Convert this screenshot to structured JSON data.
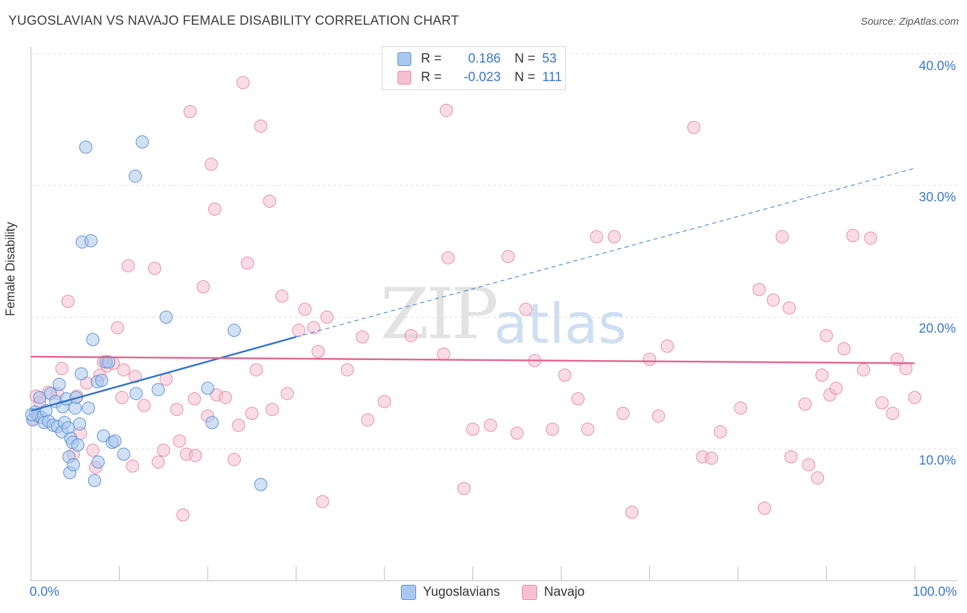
{
  "title": "YUGOSLAVIAN VS NAVAJO FEMALE DISABILITY CORRELATION CHART",
  "source": "Source: ZipAtlas.com",
  "watermark": {
    "zip": "ZIP",
    "atlas": "atlas"
  },
  "legend_top": {
    "rows": [
      {
        "r_label": "R =",
        "r_value": "0.186",
        "n_label": "N =",
        "n_value": "53"
      },
      {
        "r_label": "R =",
        "r_value": "-0.023",
        "n_label": "N =",
        "n_value": "111"
      }
    ]
  },
  "colors": {
    "blue_fill": "#a9c8ef",
    "blue_stroke": "#5b8fd6",
    "blue_line": "#2f73c8",
    "pink_fill": "#f6c0d0",
    "pink_stroke": "#e68aa8",
    "pink_line": "#e0668f",
    "grid": "#dddddd",
    "axis_label": "#3a78c9"
  },
  "chart_data": {
    "type": "scatter",
    "title": "YUGOSLAVIAN VS NAVAJO FEMALE DISABILITY CORRELATION CHART",
    "xlabel": "",
    "ylabel": "Female Disability",
    "xlim": [
      0,
      100
    ],
    "ylim": [
      0,
      40
    ],
    "x_tick_labels": [
      "0.0%",
      "100.0%"
    ],
    "y_ticks": [
      10,
      20,
      30,
      40
    ],
    "y_tick_labels": [
      "10.0%",
      "20.0%",
      "30.0%",
      "40.0%"
    ],
    "series": [
      {
        "name": "Yugoslavians",
        "r": 0.186,
        "n": 53,
        "trend": {
          "x0": 0,
          "y0": 12.9,
          "x1_solid": 30,
          "y1_solid": 18.5,
          "x1_dashed": 100,
          "y1_dashed": 31.3
        },
        "points": [
          [
            0.2,
            12.2
          ],
          [
            0.5,
            12.8
          ],
          [
            0.8,
            12.5
          ],
          [
            1.0,
            13.9
          ],
          [
            1.2,
            12.4
          ],
          [
            1.5,
            12.0
          ],
          [
            1.7,
            12.9
          ],
          [
            2.0,
            12.1
          ],
          [
            2.2,
            14.2
          ],
          [
            2.5,
            11.8
          ],
          [
            2.8,
            13.6
          ],
          [
            3.0,
            11.7
          ],
          [
            3.2,
            14.9
          ],
          [
            3.5,
            11.3
          ],
          [
            3.6,
            13.2
          ],
          [
            3.8,
            12.0
          ],
          [
            4.0,
            13.8
          ],
          [
            4.2,
            11.6
          ],
          [
            4.3,
            9.4
          ],
          [
            4.4,
            8.2
          ],
          [
            4.5,
            10.8
          ],
          [
            4.7,
            10.5
          ],
          [
            4.8,
            8.8
          ],
          [
            5.0,
            13.1
          ],
          [
            5.1,
            13.9
          ],
          [
            5.3,
            10.3
          ],
          [
            5.5,
            11.9
          ],
          [
            5.7,
            15.7
          ],
          [
            5.8,
            25.7
          ],
          [
            6.2,
            32.9
          ],
          [
            6.5,
            13.1
          ],
          [
            6.8,
            25.8
          ],
          [
            7.0,
            18.3
          ],
          [
            7.2,
            7.6
          ],
          [
            7.5,
            15.1
          ],
          [
            7.6,
            9.0
          ],
          [
            8.0,
            15.2
          ],
          [
            8.2,
            11.0
          ],
          [
            8.5,
            16.6
          ],
          [
            8.8,
            16.6
          ],
          [
            9.2,
            10.5
          ],
          [
            9.5,
            10.6
          ],
          [
            10.5,
            9.6
          ],
          [
            11.8,
            30.7
          ],
          [
            11.9,
            14.2
          ],
          [
            12.6,
            33.3
          ],
          [
            14.4,
            14.5
          ],
          [
            15.3,
            20.0
          ],
          [
            20.0,
            14.6
          ],
          [
            20.5,
            12.0
          ],
          [
            23.0,
            19.0
          ],
          [
            26.0,
            7.3
          ],
          [
            0.1,
            12.6
          ]
        ]
      },
      {
        "name": "Navajo",
        "r": -0.023,
        "n": 111,
        "trend": {
          "x0": 0,
          "y0": 17.0,
          "x1": 100,
          "y1": 16.5
        },
        "points": [
          [
            0.3,
            12.3
          ],
          [
            0.6,
            14.0
          ],
          [
            1.0,
            13.5
          ],
          [
            2.0,
            14.3
          ],
          [
            3.0,
            14.2
          ],
          [
            3.5,
            16.1
          ],
          [
            4.2,
            21.2
          ],
          [
            4.8,
            9.6
          ],
          [
            5.2,
            14.0
          ],
          [
            5.6,
            11.2
          ],
          [
            6.3,
            15.0
          ],
          [
            7.0,
            9.9
          ],
          [
            7.3,
            8.6
          ],
          [
            7.8,
            15.6
          ],
          [
            8.2,
            16.6
          ],
          [
            8.6,
            16.3
          ],
          [
            9.3,
            16.5
          ],
          [
            9.8,
            19.2
          ],
          [
            10.3,
            13.9
          ],
          [
            10.5,
            16.0
          ],
          [
            11.0,
            23.9
          ],
          [
            11.5,
            8.7
          ],
          [
            11.8,
            15.5
          ],
          [
            12.8,
            13.3
          ],
          [
            14.0,
            23.7
          ],
          [
            14.4,
            9.0
          ],
          [
            15.0,
            9.9
          ],
          [
            15.3,
            15.3
          ],
          [
            16.5,
            13.0
          ],
          [
            16.8,
            10.6
          ],
          [
            17.2,
            5.0
          ],
          [
            17.6,
            9.6
          ],
          [
            18.0,
            35.6
          ],
          [
            18.5,
            13.8
          ],
          [
            18.6,
            9.5
          ],
          [
            19.5,
            22.3
          ],
          [
            20.0,
            12.5
          ],
          [
            20.4,
            31.6
          ],
          [
            20.8,
            28.2
          ],
          [
            21.0,
            14.1
          ],
          [
            22.0,
            13.9
          ],
          [
            23.0,
            9.2
          ],
          [
            23.5,
            11.8
          ],
          [
            24.0,
            37.8
          ],
          [
            24.5,
            24.1
          ],
          [
            25.0,
            12.7
          ],
          [
            25.5,
            16.0
          ],
          [
            26.0,
            34.5
          ],
          [
            27.0,
            28.8
          ],
          [
            27.3,
            13.0
          ],
          [
            28.4,
            21.6
          ],
          [
            29.0,
            14.2
          ],
          [
            30.3,
            19.0
          ],
          [
            31.0,
            20.6
          ],
          [
            32.0,
            19.2
          ],
          [
            32.5,
            17.4
          ],
          [
            33.0,
            6.0
          ],
          [
            33.5,
            20.0
          ],
          [
            35.8,
            16.0
          ],
          [
            37.5,
            18.5
          ],
          [
            38.1,
            12.2
          ],
          [
            40.0,
            13.6
          ],
          [
            43.0,
            18.6
          ],
          [
            46.7,
            17.2
          ],
          [
            47.0,
            35.7
          ],
          [
            47.2,
            24.5
          ],
          [
            49.0,
            7.0
          ],
          [
            50.0,
            11.5
          ],
          [
            52.0,
            11.8
          ],
          [
            54.0,
            24.6
          ],
          [
            55.0,
            11.2
          ],
          [
            56.0,
            20.6
          ],
          [
            57.0,
            16.7
          ],
          [
            59.0,
            11.5
          ],
          [
            60.4,
            15.6
          ],
          [
            61.9,
            13.8
          ],
          [
            63.0,
            11.5
          ],
          [
            64.0,
            26.1
          ],
          [
            66.0,
            26.1
          ],
          [
            67.0,
            12.7
          ],
          [
            68.0,
            5.2
          ],
          [
            70.0,
            16.8
          ],
          [
            71.0,
            12.5
          ],
          [
            72.0,
            17.8
          ],
          [
            75.0,
            34.4
          ],
          [
            76.0,
            9.4
          ],
          [
            77.0,
            9.3
          ],
          [
            78.0,
            11.3
          ],
          [
            80.3,
            13.1
          ],
          [
            82.4,
            22.1
          ],
          [
            83.0,
            5.5
          ],
          [
            84.0,
            21.3
          ],
          [
            85.0,
            26.1
          ],
          [
            85.8,
            20.7
          ],
          [
            86.0,
            9.4
          ],
          [
            87.6,
            13.4
          ],
          [
            88.0,
            8.8
          ],
          [
            89.0,
            7.8
          ],
          [
            89.5,
            15.6
          ],
          [
            90.0,
            18.6
          ],
          [
            90.4,
            14.1
          ],
          [
            91.1,
            14.6
          ],
          [
            92.0,
            17.6
          ],
          [
            93.0,
            26.2
          ],
          [
            94.2,
            16.0
          ],
          [
            95.0,
            26.0
          ],
          [
            96.3,
            13.5
          ],
          [
            97.5,
            12.7
          ],
          [
            98.0,
            16.8
          ],
          [
            99.0,
            16.1
          ],
          [
            100.0,
            13.9
          ]
        ]
      }
    ]
  },
  "legend_bottom": {
    "items": [
      "Yugoslavians",
      "Navajo"
    ]
  }
}
